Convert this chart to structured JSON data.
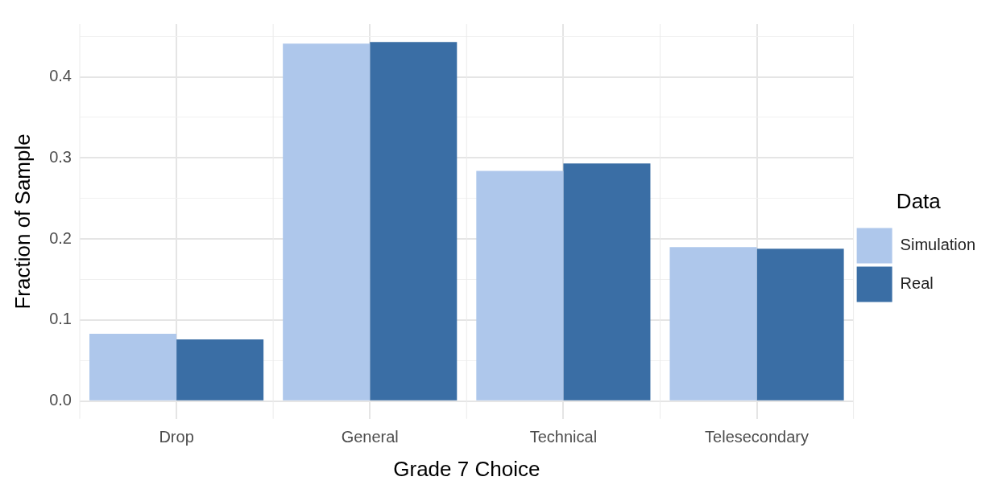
{
  "chart_data": {
    "type": "bar",
    "xlabel": "Grade 7 Choice",
    "ylabel": "Fraction of Sample",
    "legend_title": "Data",
    "categories": [
      "Drop",
      "General",
      "Technical",
      "Telesecondary"
    ],
    "series": [
      {
        "name": "Simulation",
        "color": "#aec7eb",
        "values": [
          0.083,
          0.441,
          0.284,
          0.19
        ]
      },
      {
        "name": "Real",
        "color": "#3a6ea5",
        "values": [
          0.076,
          0.443,
          0.293,
          0.188
        ]
      }
    ],
    "ylim": [
      -0.022,
      0.465
    ],
    "yticks": [
      {
        "value": 0,
        "label": "0.0"
      },
      {
        "value": 0.05,
        "label": null
      },
      0.1,
      {
        "value": 0.15,
        "label": null
      },
      0.2,
      {
        "value": 0.25,
        "label": null
      },
      0.3,
      {
        "value": 0.35,
        "label": null
      },
      0.4,
      {
        "value": 0.45,
        "label": null
      }
    ],
    "grid": true,
    "legend": "right"
  }
}
